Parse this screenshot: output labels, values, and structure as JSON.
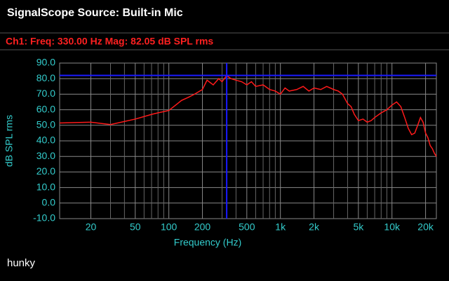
{
  "header": {
    "title": "SignalScope Source:  Built-in Mic",
    "status": "Ch1:  Freq: 330.00 Hz   Mag: 82.05 dB SPL rms"
  },
  "chart_data": {
    "type": "line",
    "xlabel": "Frequency (Hz)",
    "ylabel": "dB SPL rms",
    "xscale": "log",
    "xlim": [
      10.5,
      25000
    ],
    "ylim": [
      -10,
      90
    ],
    "xticks": [
      20,
      50,
      100,
      200,
      500,
      {
        "value": 1000,
        "label": "1k"
      },
      {
        "value": 2000,
        "label": "2k"
      },
      {
        "value": 5000,
        "label": "5k"
      },
      {
        "value": 10000,
        "label": "10k"
      },
      {
        "value": 20000,
        "label": "20k"
      }
    ],
    "x_minor_ticks": [
      30,
      40,
      60,
      70,
      80,
      90,
      300,
      400,
      600,
      700,
      800,
      900,
      3000,
      4000,
      6000,
      7000,
      8000,
      9000
    ],
    "yticks": [
      {
        "value": 90,
        "label": "90.0"
      },
      {
        "value": 80,
        "label": "80.0"
      },
      {
        "value": 70,
        "label": "70.0"
      },
      {
        "value": 60,
        "label": "60.0"
      },
      {
        "value": 50,
        "label": "50.0"
      },
      {
        "value": 40,
        "label": "40.0"
      },
      {
        "value": 30,
        "label": "30.0"
      },
      {
        "value": 20,
        "label": "20.0"
      },
      {
        "value": 10,
        "label": "10.0"
      },
      {
        "value": 0,
        "label": "0.0"
      },
      {
        "value": -10,
        "label": "-10.0"
      }
    ],
    "grid": true,
    "color": "#ff1a1a",
    "cursor": {
      "x": 330,
      "y": 82.05,
      "color": "#1a1aff"
    },
    "x": [
      10.5,
      20,
      30,
      50,
      70,
      80,
      100,
      130,
      150,
      170,
      200,
      220,
      250,
      280,
      300,
      330,
      360,
      400,
      450,
      500,
      550,
      600,
      700,
      800,
      900,
      1000,
      1100,
      1200,
      1400,
      1600,
      1800,
      2000,
      2300,
      2600,
      3000,
      3300,
      3600,
      4000,
      4300,
      4600,
      5000,
      5500,
      6000,
      6500,
      7000,
      8000,
      9000,
      10000,
      11000,
      12000,
      13000,
      14000,
      15000,
      16000,
      17000,
      18000,
      19000,
      20000,
      21000,
      22000,
      23000,
      24000,
      25000
    ],
    "values": [
      51.5,
      52,
      50.5,
      54,
      57,
      58,
      59.5,
      66,
      68,
      70,
      73,
      79,
      76,
      80,
      78,
      82,
      80,
      79,
      78,
      76,
      78,
      75,
      76,
      73,
      72,
      70,
      74,
      72,
      73,
      75,
      72,
      74,
      73,
      75,
      73,
      72,
      70,
      64,
      62,
      57,
      53,
      54,
      52,
      53,
      55,
      58,
      60,
      63,
      65,
      62,
      55,
      48,
      44,
      45,
      50,
      55,
      52,
      45,
      42,
      37,
      35,
      32,
      30
    ]
  },
  "footer": {
    "label": "hunky"
  }
}
